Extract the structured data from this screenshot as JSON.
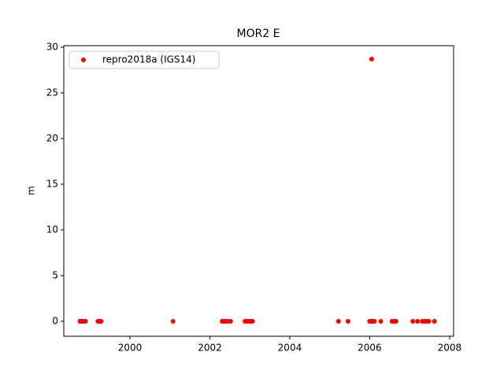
{
  "chart_data": {
    "type": "scatter",
    "title": "MOR2 E",
    "y_label": "m",
    "x": [
      1998.75,
      1998.78,
      1998.82,
      1998.86,
      1998.89,
      1999.2,
      1999.25,
      1999.28,
      2001.08,
      2002.31,
      2002.36,
      2002.4,
      2002.45,
      2002.52,
      2002.88,
      2002.93,
      2002.98,
      2003.03,
      2003.07,
      2005.22,
      2005.46,
      2006.0,
      2006.04,
      2006.05,
      2006.08,
      2006.12,
      2006.28,
      2006.56,
      2006.62,
      2006.66,
      2007.08,
      2007.2,
      2007.32,
      2007.38,
      2007.43,
      2007.48,
      2007.62
    ],
    "series": [
      {
        "name": "repro2018a (IGS14)",
        "color": "#ff0000",
        "values": [
          0,
          0,
          0,
          0,
          0,
          0,
          0,
          0,
          0,
          0,
          0,
          0,
          0,
          0,
          0,
          0,
          0,
          0,
          0,
          0,
          0,
          0,
          0,
          28.7,
          0,
          0,
          0,
          0,
          0,
          0,
          0,
          0,
          0,
          0,
          0,
          0,
          0
        ]
      }
    ],
    "xlim": [
      1998.345,
      2008.1
    ],
    "xticks": [
      2000,
      2002,
      2004,
      2006,
      2008
    ],
    "ylim": [
      -1.64,
      30.17
    ],
    "yticks": [
      0,
      5,
      10,
      15,
      20,
      25,
      30
    ],
    "legend": "upper left"
  }
}
